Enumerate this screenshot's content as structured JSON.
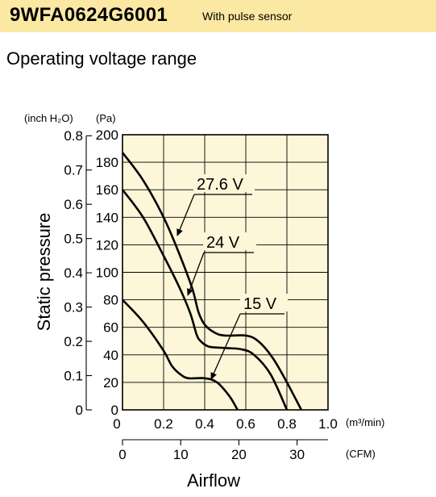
{
  "header": {
    "model": "9WFA0624G6001",
    "subtitle": "With pulse sensor",
    "background_color": "#fbe8a3"
  },
  "section_title": "Operating voltage range",
  "chart_data": {
    "type": "line",
    "title": "",
    "ylabel": "Static pressure",
    "xlabel": "Airflow",
    "y_units": {
      "outer": "(inch H₂O)",
      "inner": "(Pa)"
    },
    "x_units": {
      "primary": "(m³/min)",
      "secondary": "(CFM)"
    },
    "xlim": [
      0,
      1.0
    ],
    "ylim": [
      0,
      200
    ],
    "x_ticks": [
      "0",
      "0.2",
      "0.4",
      "0.6",
      "0.8",
      "1.0"
    ],
    "x_tick_values": [
      0,
      0.2,
      0.4,
      0.6,
      0.8,
      1.0
    ],
    "y_ticks": [
      "0",
      "20",
      "40",
      "60",
      "80",
      "100",
      "120",
      "140",
      "160",
      "180",
      "200"
    ],
    "y_tick_values": [
      0,
      20,
      40,
      60,
      80,
      100,
      120,
      140,
      160,
      180,
      200
    ],
    "y_ticks_inch": [
      "0",
      "0.1",
      "0.2",
      "0.3",
      "0.4",
      "0.5",
      "0.6",
      "0.7",
      "0.8"
    ],
    "y_inch_values": [
      0,
      0.1,
      0.2,
      0.3,
      0.4,
      0.5,
      0.6,
      0.7,
      0.8
    ],
    "cfm_ticks": [
      "0",
      "10",
      "20",
      "30"
    ],
    "cfm_values": [
      0,
      10,
      20,
      30
    ],
    "plot_background": "#fdf6d8",
    "grid": true,
    "series": [
      {
        "name": "27.6 V",
        "x": [
          0,
          0.1,
          0.2,
          0.28,
          0.34,
          0.37,
          0.4,
          0.45,
          0.5,
          0.6,
          0.66,
          0.73,
          0.8,
          0.87
        ],
        "y": [
          187,
          167,
          140,
          112,
          88,
          71,
          62,
          56,
          54,
          54,
          50,
          38,
          20,
          0
        ]
      },
      {
        "name": "24 V",
        "x": [
          0,
          0.1,
          0.2,
          0.28,
          0.33,
          0.36,
          0.38,
          0.42,
          0.5,
          0.58,
          0.64,
          0.72,
          0.8
        ],
        "y": [
          160,
          140,
          112,
          88,
          70,
          55,
          50,
          46,
          45,
          44,
          40,
          26,
          0
        ]
      },
      {
        "name": "15 V",
        "x": [
          0,
          0.1,
          0.2,
          0.24,
          0.28,
          0.32,
          0.4,
          0.46,
          0.52,
          0.56
        ],
        "y": [
          80,
          64,
          43,
          32,
          26,
          23,
          23,
          20,
          10,
          0
        ]
      }
    ],
    "annotations": [
      "27.6 V",
      "24 V",
      "15 V"
    ]
  }
}
